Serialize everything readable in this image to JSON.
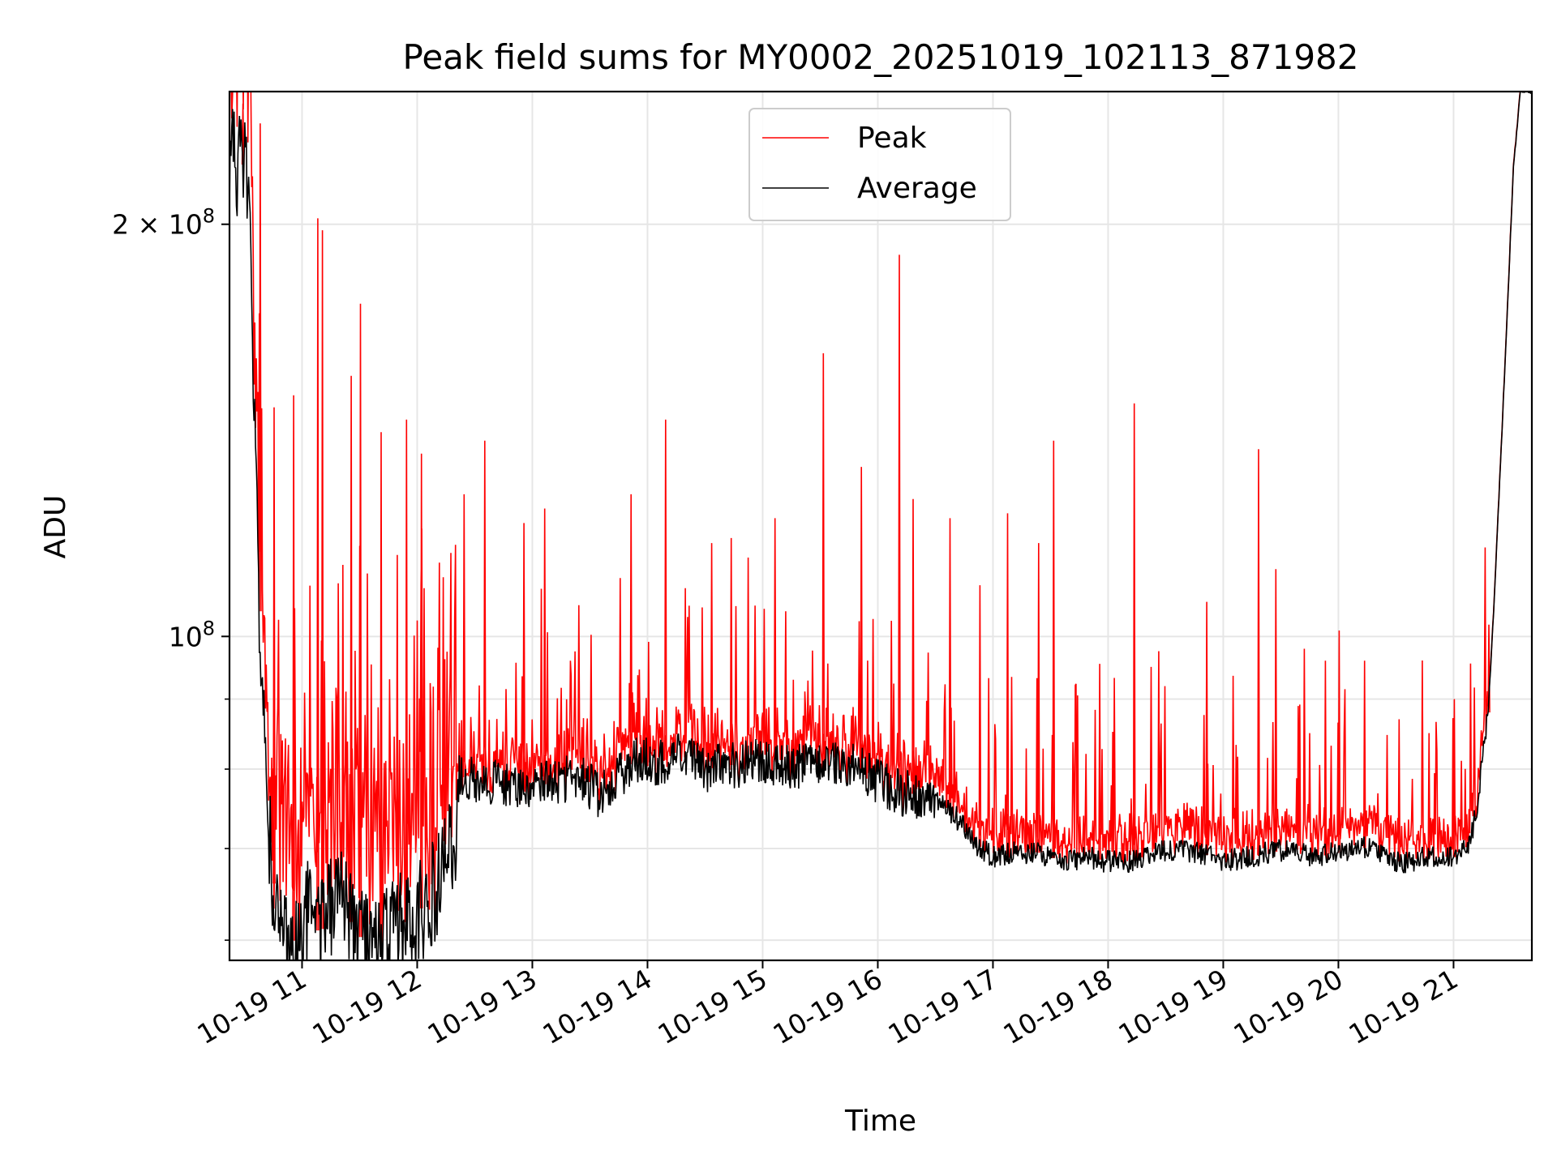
{
  "chart_data": {
    "type": "line",
    "title": "Peak field sums for MY0002_20251019_102113_871982",
    "xlabel": "Time",
    "ylabel": "ADU",
    "yscale": "log",
    "ylim": [
      58000000,
      250000000
    ],
    "xlim": [
      10.37,
      21.68
    ],
    "grid": true,
    "legend": "upper center",
    "x_ticks": [
      {
        "value": 11,
        "label": "10-19 11"
      },
      {
        "value": 12,
        "label": "10-19 12"
      },
      {
        "value": 13,
        "label": "10-19 13"
      },
      {
        "value": 14,
        "label": "10-19 14"
      },
      {
        "value": 15,
        "label": "10-19 15"
      },
      {
        "value": 16,
        "label": "10-19 16"
      },
      {
        "value": 17,
        "label": "10-19 17"
      },
      {
        "value": 18,
        "label": "10-19 18"
      },
      {
        "value": 19,
        "label": "10-19 19"
      },
      {
        "value": 20,
        "label": "10-19 20"
      },
      {
        "value": 21,
        "label": "10-19 21"
      }
    ],
    "y_major_ticks": [
      {
        "value": 100000000,
        "base": "10",
        "exp": "8",
        "coef": ""
      },
      {
        "value": 200000000,
        "base": "10",
        "exp": "8",
        "coef": "2 × "
      }
    ],
    "y_minor_ticks": [
      60000000,
      70000000,
      80000000,
      90000000
    ],
    "series": [
      {
        "name": "Peak",
        "color": "#ff0000"
      },
      {
        "name": "Average",
        "color": "#000000"
      }
    ],
    "average_baseline": [
      [
        10.37,
        225000000
      ],
      [
        10.45,
        222000000
      ],
      [
        10.52,
        220000000
      ],
      [
        10.55,
        190000000
      ],
      [
        10.62,
        110000000
      ],
      [
        10.68,
        80000000
      ],
      [
        10.75,
        66000000
      ],
      [
        10.85,
        61000000
      ],
      [
        10.95,
        59500000
      ],
      [
        11.05,
        63000000
      ],
      [
        11.15,
        60500000
      ],
      [
        11.3,
        65500000
      ],
      [
        11.45,
        61000000
      ],
      [
        11.6,
        59000000
      ],
      [
        11.75,
        61000000
      ],
      [
        11.9,
        62000000
      ],
      [
        12.05,
        63500000
      ],
      [
        12.2,
        66500000
      ],
      [
        12.33,
        72000000
      ],
      [
        12.36,
        79000000
      ],
      [
        12.6,
        78500000
      ],
      [
        12.8,
        78000000
      ],
      [
        13.0,
        77500000
      ],
      [
        13.2,
        78500000
      ],
      [
        13.4,
        79000000
      ],
      [
        13.6,
        76500000
      ],
      [
        13.75,
        79000000
      ],
      [
        13.9,
        81500000
      ],
      [
        14.1,
        81000000
      ],
      [
        14.3,
        82000000
      ],
      [
        14.5,
        80000000
      ],
      [
        14.7,
        80500000
      ],
      [
        14.9,
        81000000
      ],
      [
        15.1,
        81000000
      ],
      [
        15.3,
        80500000
      ],
      [
        15.5,
        80500000
      ],
      [
        15.75,
        81000000
      ],
      [
        16.0,
        78500000
      ],
      [
        16.2,
        77000000
      ],
      [
        16.4,
        76500000
      ],
      [
        16.55,
        75500000
      ],
      [
        16.7,
        73500000
      ],
      [
        16.85,
        70500000
      ],
      [
        17.0,
        69000000
      ],
      [
        17.2,
        69500000
      ],
      [
        17.4,
        69500000
      ],
      [
        17.6,
        68500000
      ],
      [
        17.8,
        69000000
      ],
      [
        18.0,
        68500000
      ],
      [
        18.2,
        68500000
      ],
      [
        18.4,
        69500000
      ],
      [
        18.6,
        70000000
      ],
      [
        18.8,
        69500000
      ],
      [
        19.0,
        68500000
      ],
      [
        19.2,
        69000000
      ],
      [
        19.4,
        69500000
      ],
      [
        19.6,
        70000000
      ],
      [
        19.8,
        69000000
      ],
      [
        20.0,
        69500000
      ],
      [
        20.2,
        70000000
      ],
      [
        20.3,
        70500000
      ],
      [
        20.45,
        68500000
      ],
      [
        20.6,
        68500000
      ],
      [
        20.8,
        69000000
      ],
      [
        21.0,
        69000000
      ],
      [
        21.12,
        70000000
      ],
      [
        21.2,
        74500000
      ],
      [
        21.3,
        88000000
      ],
      [
        21.35,
        105000000
      ],
      [
        21.45,
        160000000
      ],
      [
        21.52,
        220000000
      ],
      [
        21.58,
        250000000
      ],
      [
        21.68,
        250000000
      ]
    ],
    "peak_spikes": [
      [
        10.48,
        245000000
      ],
      [
        10.63,
        237000000
      ],
      [
        10.75,
        147000000
      ],
      [
        10.92,
        150000000
      ],
      [
        11.13,
        202000000
      ],
      [
        11.17,
        198000000
      ],
      [
        11.42,
        155000000
      ],
      [
        11.5,
        175000000
      ],
      [
        11.68,
        141000000
      ],
      [
        11.9,
        144000000
      ],
      [
        12.03,
        136000000
      ],
      [
        12.4,
        127000000
      ],
      [
        12.58,
        139000000
      ],
      [
        12.92,
        121000000
      ],
      [
        13.1,
        124000000
      ],
      [
        13.85,
        127000000
      ],
      [
        14.15,
        144000000
      ],
      [
        14.55,
        117000000
      ],
      [
        14.72,
        118000000
      ],
      [
        15.1,
        122000000
      ],
      [
        15.52,
        161000000
      ],
      [
        15.85,
        133000000
      ],
      [
        16.18,
        190000000
      ],
      [
        16.3,
        126000000
      ],
      [
        16.62,
        122000000
      ],
      [
        16.88,
        109000000
      ],
      [
        17.12,
        123000000
      ],
      [
        17.39,
        117000000
      ],
      [
        17.52,
        139000000
      ],
      [
        17.92,
        95500000
      ],
      [
        18.22,
        148000000
      ],
      [
        18.85,
        106000000
      ],
      [
        19.3,
        137000000
      ],
      [
        19.45,
        112000000
      ],
      [
        19.88,
        96000000
      ],
      [
        20.0,
        101000000
      ],
      [
        20.22,
        96000000
      ],
      [
        20.52,
        87000000
      ],
      [
        20.78,
        85000000
      ],
      [
        21.0,
        90000000
      ],
      [
        21.3,
        102000000
      ]
    ]
  }
}
